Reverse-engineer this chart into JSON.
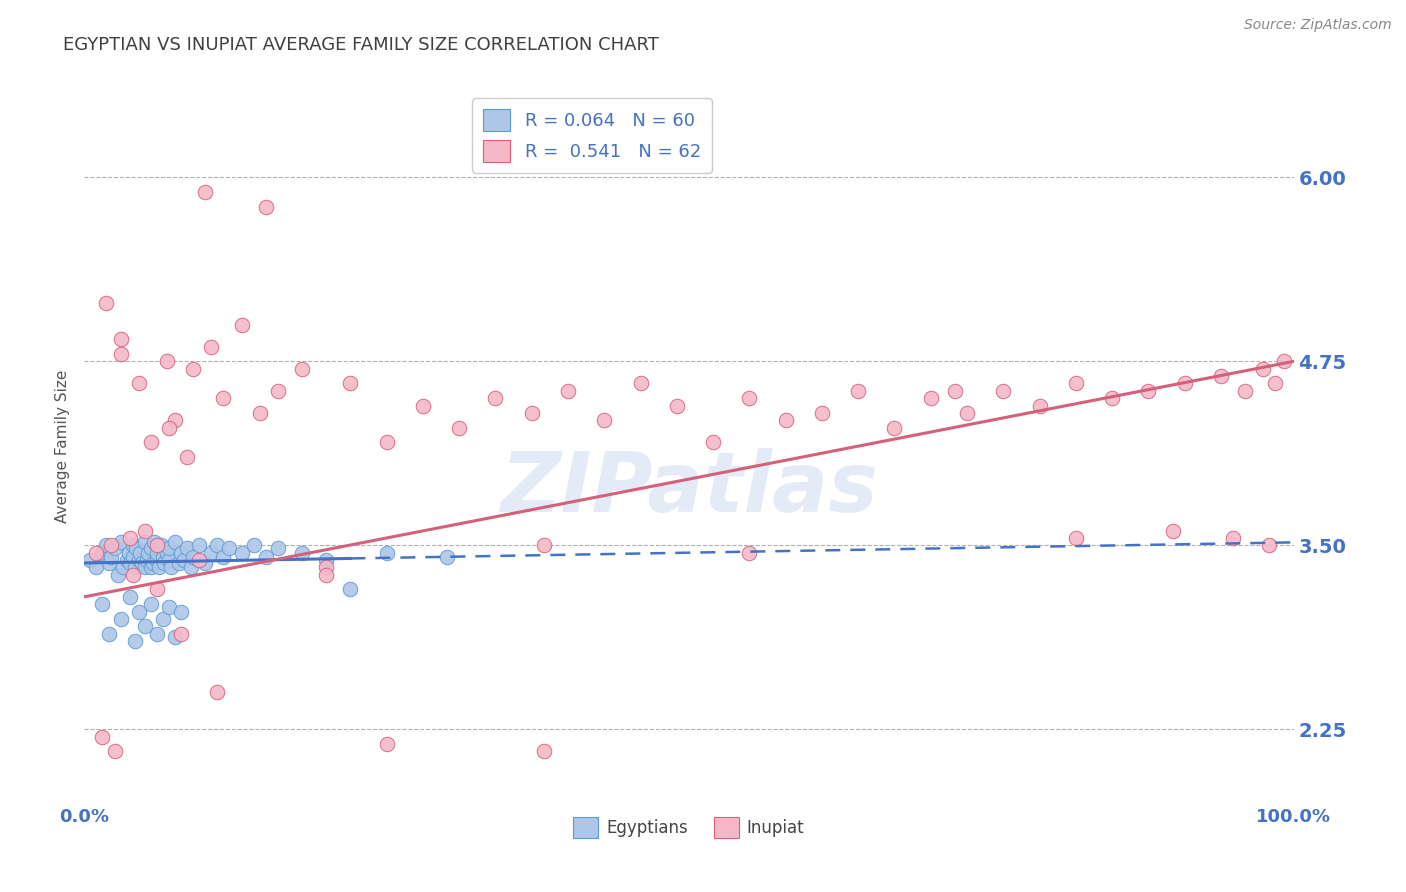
{
  "title": "EGYPTIAN VS INUPIAT AVERAGE FAMILY SIZE CORRELATION CHART",
  "source": "Source: ZipAtlas.com",
  "ylabel": "Average Family Size",
  "xlim": [
    0.0,
    1.0
  ],
  "ylim": [
    1.75,
    6.6
  ],
  "yticks": [
    2.25,
    3.5,
    4.75,
    6.0
  ],
  "xticks": [
    0.0,
    1.0
  ],
  "xticklabels": [
    "0.0%",
    "100.0%"
  ],
  "yticklabels": [
    "2.25",
    "3.50",
    "4.75",
    "6.00"
  ],
  "legend_r1": "R = 0.064   N = 60",
  "legend_r2": "R =  0.541   N = 62",
  "legend_label1": "Egyptians",
  "legend_label2": "Inupiat",
  "egyptian_fill": "#aec6e8",
  "inupiat_fill": "#f4b8c8",
  "egyptian_edge": "#5b9bd5",
  "inupiat_edge": "#d4607a",
  "trend_blue": "#4472c4",
  "trend_pink": "#d4607a",
  "title_color": "#404040",
  "axis_color": "#4472c4",
  "grid_color": "#b0b0b0",
  "background_color": "#ffffff",
  "watermark": "ZIPatlas",
  "egyptian_x": [
    0.005,
    0.01,
    0.015,
    0.018,
    0.02,
    0.022,
    0.025,
    0.028,
    0.03,
    0.032,
    0.035,
    0.037,
    0.038,
    0.04,
    0.04,
    0.042,
    0.043,
    0.045,
    0.046,
    0.048,
    0.05,
    0.05,
    0.052,
    0.053,
    0.055,
    0.055,
    0.057,
    0.058,
    0.06,
    0.06,
    0.062,
    0.063,
    0.065,
    0.066,
    0.068,
    0.07,
    0.07,
    0.072,
    0.075,
    0.078,
    0.08,
    0.082,
    0.085,
    0.088,
    0.09,
    0.095,
    0.1,
    0.105,
    0.11,
    0.115,
    0.12,
    0.13,
    0.14,
    0.15,
    0.16,
    0.18,
    0.2,
    0.22,
    0.25,
    0.3
  ],
  "egyptian_y": [
    3.4,
    3.35,
    3.45,
    3.5,
    3.38,
    3.42,
    3.48,
    3.3,
    3.52,
    3.35,
    3.4,
    3.45,
    3.38,
    3.5,
    3.42,
    3.35,
    3.48,
    3.4,
    3.45,
    3.38,
    3.52,
    3.35,
    3.4,
    3.45,
    3.35,
    3.48,
    3.38,
    3.52,
    3.4,
    3.45,
    3.35,
    3.5,
    3.42,
    3.38,
    3.45,
    3.4,
    3.48,
    3.35,
    3.52,
    3.38,
    3.45,
    3.4,
    3.48,
    3.35,
    3.42,
    3.5,
    3.38,
    3.45,
    3.5,
    3.42,
    3.48,
    3.45,
    3.5,
    3.42,
    3.48,
    3.45,
    3.4,
    3.2,
    3.45,
    3.42
  ],
  "egyptian_low_x": [
    0.015,
    0.02,
    0.03,
    0.038,
    0.042,
    0.045,
    0.05,
    0.055,
    0.06,
    0.065,
    0.07,
    0.075,
    0.08
  ],
  "egyptian_low_y": [
    3.1,
    2.9,
    3.0,
    3.15,
    2.85,
    3.05,
    2.95,
    3.1,
    2.9,
    3.0,
    3.08,
    2.88,
    3.05
  ],
  "inupiat_x": [
    0.01,
    0.018,
    0.022,
    0.03,
    0.038,
    0.045,
    0.055,
    0.06,
    0.068,
    0.075,
    0.085,
    0.095,
    0.105,
    0.115,
    0.13,
    0.145,
    0.16,
    0.18,
    0.2,
    0.22,
    0.25,
    0.28,
    0.31,
    0.34,
    0.37,
    0.4,
    0.43,
    0.46,
    0.49,
    0.52,
    0.55,
    0.58,
    0.61,
    0.64,
    0.67,
    0.7,
    0.73,
    0.76,
    0.79,
    0.82,
    0.85,
    0.88,
    0.91,
    0.94,
    0.96,
    0.975,
    0.985,
    0.992,
    0.03,
    0.05,
    0.07,
    0.09,
    0.2,
    0.38,
    0.55,
    0.72,
    0.82,
    0.9,
    0.95,
    0.98,
    0.1,
    0.15
  ],
  "inupiat_y": [
    3.45,
    5.15,
    3.5,
    4.9,
    3.55,
    4.6,
    4.2,
    3.5,
    4.75,
    4.35,
    4.1,
    3.4,
    4.85,
    4.5,
    5.0,
    4.4,
    4.55,
    4.7,
    3.35,
    4.6,
    4.2,
    4.45,
    4.3,
    4.5,
    4.4,
    4.55,
    4.35,
    4.6,
    4.45,
    4.2,
    4.5,
    4.35,
    4.4,
    4.55,
    4.3,
    4.5,
    4.4,
    4.55,
    4.45,
    4.6,
    4.5,
    4.55,
    4.6,
    4.65,
    4.55,
    4.7,
    4.6,
    4.75,
    4.8,
    3.6,
    4.3,
    4.7,
    3.3,
    3.5,
    3.45,
    4.55,
    3.55,
    3.6,
    3.55,
    3.5,
    5.9,
    5.8
  ],
  "inupiat_low_x": [
    0.015,
    0.025,
    0.04,
    0.06,
    0.08,
    0.11,
    0.25,
    0.38
  ],
  "inupiat_low_y": [
    2.2,
    2.1,
    3.3,
    3.2,
    2.9,
    2.5,
    2.15,
    2.1
  ],
  "eg_trend_x0": 0.0,
  "eg_trend_x1": 1.0,
  "eg_trend_y0": 3.38,
  "eg_trend_y1": 3.52,
  "in_trend_x0": 0.0,
  "in_trend_x1": 1.0,
  "in_trend_y0": 3.15,
  "in_trend_y1": 4.75
}
